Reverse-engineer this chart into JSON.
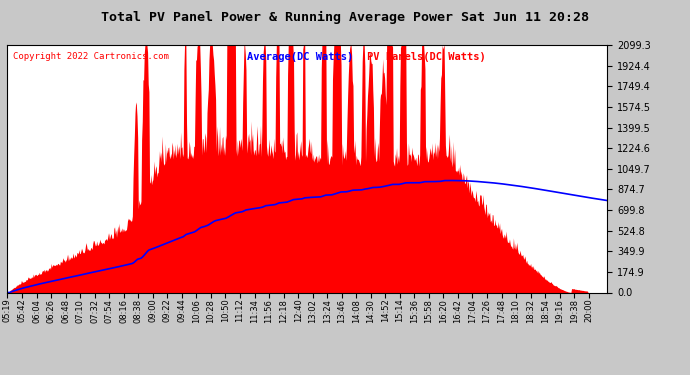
{
  "title": "Total PV Panel Power & Running Average Power Sat Jun 11 20:28",
  "copyright": "Copyright 2022 Cartronics.com",
  "legend_avg": "Average(DC Watts)",
  "legend_pv": "PV Panels(DC Watts)",
  "yticks": [
    0.0,
    174.9,
    349.9,
    524.8,
    699.8,
    874.7,
    1049.7,
    1224.6,
    1399.5,
    1574.5,
    1749.4,
    1924.4,
    2099.3
  ],
  "ymax": 2099.3,
  "ymin": 0.0,
  "bg_color": "#c8c8c8",
  "plot_bg_color": "#ffffff",
  "pv_color": "#ff0000",
  "avg_color": "#0000ff",
  "grid_color": "#c8c8c8",
  "title_color": "#000000",
  "copyright_color": "#ff0000",
  "xtick_labels": [
    "05:19",
    "05:42",
    "06:04",
    "06:26",
    "06:48",
    "07:10",
    "07:32",
    "07:54",
    "08:16",
    "08:38",
    "09:00",
    "09:22",
    "09:44",
    "10:06",
    "10:28",
    "10:50",
    "11:12",
    "11:34",
    "11:56",
    "12:18",
    "12:40",
    "13:02",
    "13:24",
    "13:46",
    "14:08",
    "14:30",
    "14:52",
    "15:14",
    "15:36",
    "15:58",
    "16:20",
    "16:42",
    "17:04",
    "17:26",
    "17:48",
    "18:10",
    "18:32",
    "18:54",
    "19:16",
    "19:38",
    "20:00"
  ]
}
